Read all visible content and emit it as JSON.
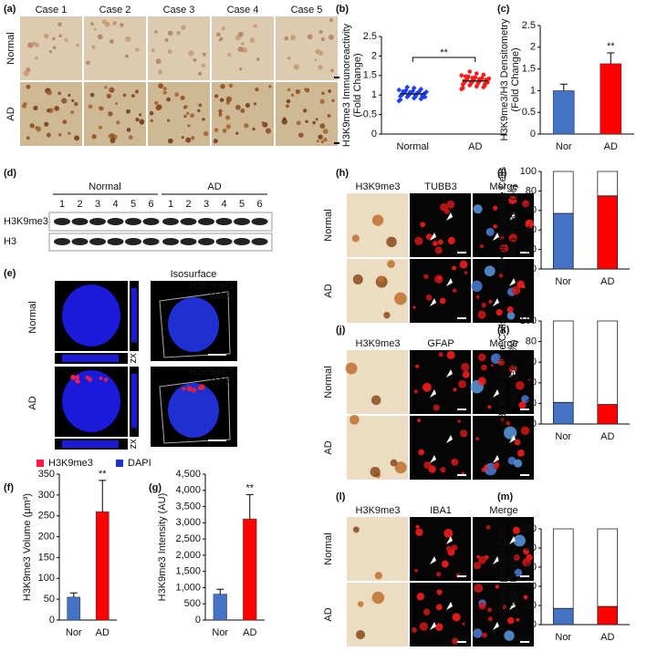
{
  "figure": {
    "a": {
      "label": "(a)",
      "cases": [
        "Case 1",
        "Case 2",
        "Case 3",
        "Case 4",
        "Case 5"
      ],
      "rows": [
        "Normal",
        "AD"
      ]
    },
    "d": {
      "label": "(d)",
      "groups": [
        "Normal",
        "AD"
      ],
      "lanes": [
        "1",
        "2",
        "3",
        "4",
        "5",
        "6",
        "1",
        "2",
        "3",
        "4",
        "5",
        "6"
      ],
      "rows": [
        "H3K9me3",
        "H3"
      ]
    },
    "e": {
      "label": "(e)",
      "rows": [
        "Normal",
        "AD"
      ],
      "isosurface": "Isosurface",
      "channels": [
        "H3K9me3",
        "DAPI"
      ],
      "orthogonal": [
        "zy",
        "zx"
      ],
      "legend": [
        "H3K9me3",
        "DAPI"
      ]
    },
    "h": {
      "label": "(h)",
      "columns": [
        "H3K9me3",
        "TUBB3",
        "Merge"
      ],
      "rows": [
        "Normal",
        "AD"
      ]
    },
    "j": {
      "label": "(j)",
      "columns": [
        "H3K9me3",
        "GFAP",
        "Merge"
      ],
      "rows": [
        "Normal",
        "AD"
      ]
    },
    "l": {
      "label": "(l)",
      "columns": [
        "H3K9me3",
        "IBA1",
        "Merge"
      ],
      "rows": [
        "Normal",
        "AD"
      ]
    }
  },
  "chart_data": [
    {
      "type": "strip",
      "panel": "(b)",
      "ylabel": [
        "H3K9me3 Immunoreactivity",
        "(Fold Change)"
      ],
      "categories": [
        "Normal",
        "AD"
      ],
      "colors": [
        "#1f3fff",
        "#ff1a1a"
      ],
      "values": [
        [
          0.85,
          0.9,
          0.92,
          0.95,
          0.97,
          0.98,
          1.0,
          1.0,
          1.01,
          1.02,
          1.03,
          1.03,
          1.04,
          1.05,
          1.05,
          1.06,
          1.07,
          1.08,
          1.1,
          1.1,
          1.12,
          1.13,
          1.15,
          1.18,
          1.2,
          0.88,
          0.93,
          0.96,
          0.99,
          1.0,
          1.02,
          1.04,
          1.07,
          1.09,
          0.95
        ],
        [
          1.15,
          1.2,
          1.22,
          1.25,
          1.27,
          1.28,
          1.3,
          1.3,
          1.32,
          1.33,
          1.35,
          1.35,
          1.36,
          1.37,
          1.38,
          1.4,
          1.4,
          1.42,
          1.43,
          1.45,
          1.47,
          1.5,
          1.52,
          1.55,
          1.6,
          1.18,
          1.24,
          1.29,
          1.34,
          1.36,
          1.39,
          1.41,
          1.44,
          1.48,
          1.32
        ]
      ],
      "means": [
        1.03,
        1.36
      ],
      "annotation": "**",
      "ylim": [
        0,
        2.5
      ],
      "yticks": [
        0,
        0.5,
        1,
        1.5,
        2,
        2.5
      ]
    },
    {
      "type": "bar",
      "panel": "(c)",
      "ylabel": [
        "H3K9me3/H3 Densitometry",
        "(Fold Change)"
      ],
      "categories": [
        "Nor",
        "AD"
      ],
      "values": [
        1.0,
        1.62
      ],
      "errors": [
        0.15,
        0.25
      ],
      "colors": [
        "#4472c4",
        "#ff0000"
      ],
      "annotation": "**",
      "ylim": [
        0,
        2.5
      ],
      "yticks": [
        0,
        0.5,
        1,
        1.5,
        2,
        2.5
      ]
    },
    {
      "type": "bar",
      "panel": "(f)",
      "ylabel": [
        "H3K9me3 Volume (μm³)"
      ],
      "categories": [
        "Nor",
        "AD"
      ],
      "values": [
        55,
        260
      ],
      "errors": [
        10,
        75
      ],
      "colors": [
        "#4472c4",
        "#ff0000"
      ],
      "annotation": "**",
      "ylim": [
        0,
        350
      ],
      "yticks": [
        0,
        50,
        100,
        150,
        200,
        250,
        300,
        350
      ]
    },
    {
      "type": "bar",
      "panel": "(g)",
      "ylabel": [
        "H3K9me3 Intensity (AU)"
      ],
      "categories": [
        "Nor",
        "AD"
      ],
      "values": [
        800,
        3120
      ],
      "errors": [
        150,
        750
      ],
      "colors": [
        "#4472c4",
        "#ff0000"
      ],
      "annotation": "**",
      "ylim": [
        0,
        4500
      ],
      "yticks": [
        0,
        500,
        {
          "value": 1000,
          "label": "1,000"
        },
        {
          "value": 1500,
          "label": "1,500"
        },
        {
          "value": 2000,
          "label": "2,000"
        },
        {
          "value": 2500,
          "label": "2,500"
        },
        {
          "value": 3000,
          "label": "3,000"
        },
        {
          "value": 3500,
          "label": "3,500"
        },
        {
          "value": 4000,
          "label": "4,000"
        },
        {
          "value": 4500,
          "label": "4,500"
        }
      ]
    },
    {
      "type": "stacked_bar",
      "panel": "(i)",
      "ylabel": [
        "H3K9me3-positive Cells",
        "with TUBB3 (%)"
      ],
      "categories": [
        "Nor",
        "AD"
      ],
      "series": [
        {
          "values": [
            57,
            75
          ],
          "colors": [
            "#4472c4",
            "#ff0000"
          ]
        },
        {
          "values": [
            43,
            25
          ],
          "color": "#ffffff"
        }
      ],
      "ylim": [
        0,
        100
      ],
      "yticks": [
        0,
        20,
        40,
        60,
        80,
        100
      ]
    },
    {
      "type": "stacked_bar",
      "panel": "(k)",
      "ylabel": [
        "H3K9me3-positive Cells",
        "with GFAP (%)"
      ],
      "categories": [
        "Nor",
        "AD"
      ],
      "series": [
        {
          "values": [
            21,
            19
          ],
          "colors": [
            "#4472c4",
            "#ff0000"
          ]
        },
        {
          "values": [
            79,
            81
          ],
          "color": "#ffffff"
        }
      ],
      "ylim": [
        0,
        100
      ],
      "yticks": [
        0,
        20,
        40,
        60,
        80,
        100
      ]
    },
    {
      "type": "stacked_bar",
      "panel": "(m)",
      "ylabel": [
        "H3K9me3-positive Cells",
        "with IBA1(%)"
      ],
      "categories": [
        "Nor",
        "AD"
      ],
      "series": [
        {
          "values": [
            17,
            19
          ],
          "colors": [
            "#4472c4",
            "#ff0000"
          ]
        },
        {
          "values": [
            83,
            81
          ],
          "color": "#ffffff"
        }
      ],
      "ylim": [
        0,
        100
      ],
      "yticks": [
        0,
        20,
        40,
        60,
        80,
        100
      ]
    }
  ]
}
